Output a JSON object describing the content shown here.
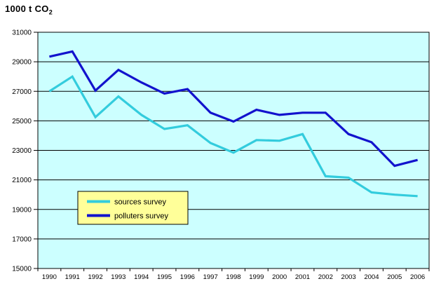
{
  "chart": {
    "title_main": "1000 t CO",
    "title_sub": "2"
  },
  "chart_data": {
    "type": "line",
    "title": "1000 t CO₂",
    "xlabel": "",
    "ylabel": "1000 t CO₂",
    "categories": [
      "1990",
      "1991",
      "1992",
      "1993",
      "1994",
      "1995",
      "1996",
      "1997",
      "1998",
      "1999",
      "2000",
      "2001",
      "2002",
      "2003",
      "2004",
      "2005",
      "2006"
    ],
    "series": [
      {
        "name": "sources survey",
        "color": "#33CCDD",
        "values": [
          27000,
          28000,
          25250,
          26650,
          25400,
          24450,
          24700,
          23500,
          22850,
          23700,
          23650,
          24100,
          21250,
          21150,
          20150,
          20000,
          19900
        ]
      },
      {
        "name": "polluters survey",
        "color": "#1212CD",
        "values": [
          29350,
          29700,
          27050,
          28450,
          27600,
          26850,
          27150,
          25550,
          24950,
          25750,
          25400,
          25550,
          25550,
          24100,
          23550,
          21950,
          22350
        ]
      }
    ],
    "ylim": [
      15000,
      31000
    ],
    "ytick_step": 2000,
    "grid": true,
    "legend_position": "inside-bottom-left",
    "colors": {
      "plot_bg": "#CCFFFF",
      "legend_bg": "#FFFF99",
      "axis": "#000000",
      "gridline": "#000000",
      "text": "#000000",
      "page_bg": "#FFFFFF"
    }
  }
}
